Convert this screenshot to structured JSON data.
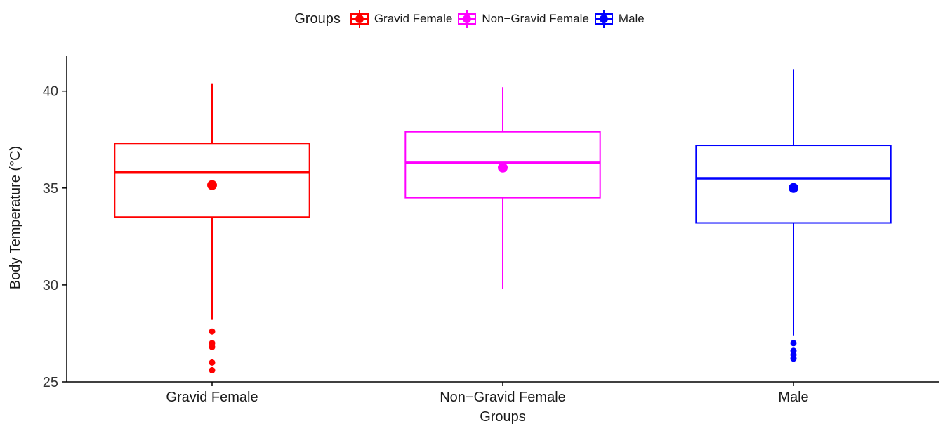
{
  "chart_data": {
    "type": "boxplot",
    "title": "",
    "xlabel": "Groups",
    "ylabel": "Body Temperature (°C)",
    "ylim": [
      25,
      41.8
    ],
    "yticks": [
      25,
      30,
      35,
      40
    ],
    "grid": false,
    "legend": {
      "title": "Groups",
      "position": "top",
      "entries": [
        "Gravid Female",
        "Non−Gravid Female",
        "Male"
      ]
    },
    "categories": [
      "Gravid Female",
      "Non−Gravid Female",
      "Male"
    ],
    "series": [
      {
        "name": "Gravid Female",
        "color": "#ff0000",
        "whisker_low": 28.2,
        "q1": 33.5,
        "median": 35.8,
        "q3": 37.3,
        "whisker_high": 40.4,
        "mean": 35.15,
        "outliers": [
          27.6,
          27.0,
          26.8,
          26.0,
          25.6
        ]
      },
      {
        "name": "Non−Gravid Female",
        "color": "#ff00ff",
        "whisker_low": 29.8,
        "q1": 34.5,
        "median": 36.3,
        "q3": 37.9,
        "whisker_high": 40.2,
        "mean": 36.05,
        "outliers": []
      },
      {
        "name": "Male",
        "color": "#0000ff",
        "whisker_low": 27.4,
        "q1": 33.2,
        "median": 35.5,
        "q3": 37.2,
        "whisker_high": 41.1,
        "mean": 35.0,
        "outliers": [
          27.0,
          26.6,
          26.4,
          26.2
        ]
      }
    ]
  }
}
